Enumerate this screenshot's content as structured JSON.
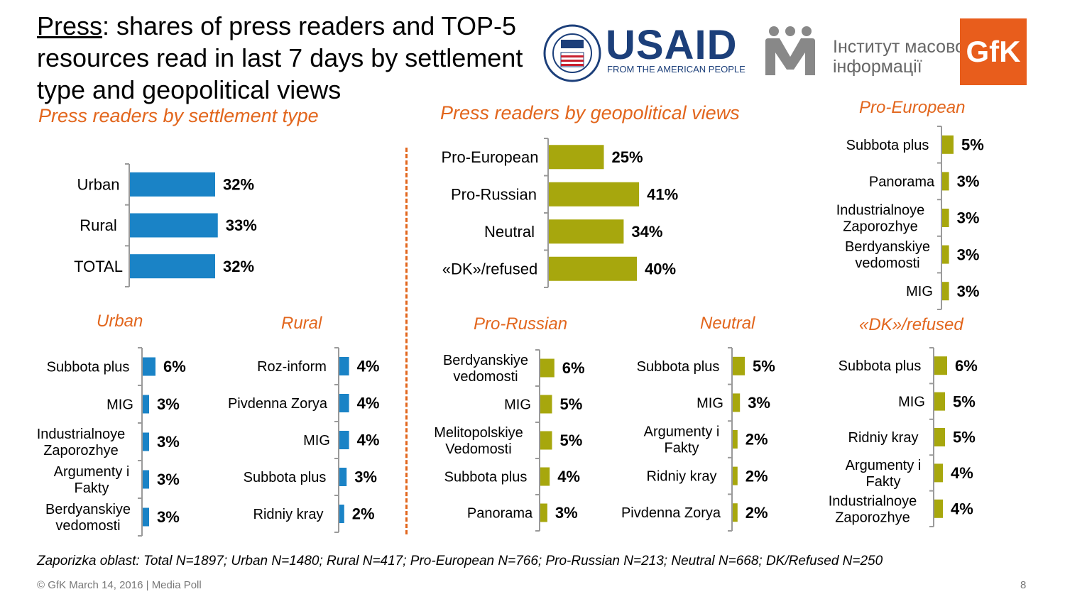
{
  "header": {
    "title_underlined": "Press",
    "title_rest": ": shares of press readers and TOP-5 resources read in last 7 days by settlement type and geopolitical views"
  },
  "logos": {
    "usaid_word": "USAID",
    "usaid_tagline": "FROM THE AMERICAN PEOPLE",
    "imi_line1": "Інститут масової",
    "imi_line2": "інформації",
    "gfk": "GfK"
  },
  "sections": {
    "settlement": "Press readers by settlement type",
    "geopolitical": "Press readers by geopolitical views"
  },
  "footnote": "Zaporizka oblast: Total N=1897; Urban N=1480; Rural N=417; Pro-European N=766; Pro-Russian N=213; Neutral N=668; DK/Refused N=250",
  "footer": {
    "left": "© GfK March 14, 2016 | Media Poll",
    "page": "8"
  },
  "colors": {
    "blue": "#1a83c6",
    "olive": "#a7a70d",
    "orange": "#e2661d"
  },
  "chart_data": [
    {
      "id": "settlement",
      "type": "bar",
      "orientation": "horizontal",
      "color": "#1a83c6",
      "categories": [
        "Urban",
        "Rural",
        "TOTAL"
      ],
      "values": [
        32,
        33,
        32
      ],
      "labels": [
        "32%",
        "33%",
        "32%"
      ]
    },
    {
      "id": "geopolitical",
      "type": "bar",
      "orientation": "horizontal",
      "color": "#a7a70d",
      "categories": [
        "Pro-European",
        "Pro-Russian",
        "Neutral",
        "«DK»/refused"
      ],
      "values": [
        25,
        41,
        34,
        40
      ],
      "labels": [
        "25%",
        "41%",
        "34%",
        "40%"
      ]
    },
    {
      "id": "urban",
      "title": "Urban",
      "type": "bar",
      "orientation": "horizontal",
      "color": "#1a83c6",
      "categories": [
        "Subbota plus",
        "MIG",
        "Industrialnoye Zaporozhye",
        "Argumenty i Fakty",
        "Berdyanskiye vedomosti"
      ],
      "values": [
        6,
        3,
        3,
        3,
        3
      ],
      "labels": [
        "6%",
        "3%",
        "3%",
        "3%",
        "3%"
      ]
    },
    {
      "id": "rural",
      "title": "Rural",
      "type": "bar",
      "orientation": "horizontal",
      "color": "#1a83c6",
      "categories": [
        "Roz-inform",
        "Pivdenna Zorya",
        "MIG",
        "Subbota plus",
        "Ridniy kray"
      ],
      "values": [
        4,
        4,
        4,
        3,
        2
      ],
      "labels": [
        "4%",
        "4%",
        "4%",
        "3%",
        "2%"
      ]
    },
    {
      "id": "pro_european",
      "title": "Pro-European",
      "type": "bar",
      "orientation": "horizontal",
      "color": "#a7a70d",
      "categories": [
        "Subbota plus",
        "Panorama",
        "Industrialnoye Zaporozhye",
        "Berdyanskiye vedomosti",
        "MIG"
      ],
      "values": [
        5,
        3,
        3,
        3,
        3
      ],
      "labels": [
        "5%",
        "3%",
        "3%",
        "3%",
        "3%"
      ]
    },
    {
      "id": "pro_russian",
      "title": "Pro-Russian",
      "type": "bar",
      "orientation": "horizontal",
      "color": "#a7a70d",
      "categories": [
        "Berdyanskiye vedomosti",
        "MIG",
        "Melitopolskiye Vedomosti",
        "Subbota plus",
        "Panorama"
      ],
      "values": [
        6,
        5,
        5,
        4,
        3
      ],
      "labels": [
        "6%",
        "5%",
        "5%",
        "4%",
        "3%"
      ]
    },
    {
      "id": "neutral",
      "title": "Neutral",
      "type": "bar",
      "orientation": "horizontal",
      "color": "#a7a70d",
      "categories": [
        "Subbota plus",
        "MIG",
        "Argumenty i Fakty",
        "Ridniy kray",
        "Pivdenna Zorya"
      ],
      "values": [
        5,
        3,
        2,
        2,
        2
      ],
      "labels": [
        "5%",
        "3%",
        "2%",
        "2%",
        "2%"
      ]
    },
    {
      "id": "dk_refused",
      "title": "«DK»/refused",
      "type": "bar",
      "orientation": "horizontal",
      "color": "#a7a70d",
      "categories": [
        "Subbota plus",
        "MIG",
        "Ridniy kray",
        "Argumenty i Fakty",
        "Industrialnoye Zaporozhye"
      ],
      "values": [
        6,
        5,
        5,
        4,
        4
      ],
      "labels": [
        "6%",
        "5%",
        "5%",
        "4%",
        "4%"
      ]
    }
  ]
}
